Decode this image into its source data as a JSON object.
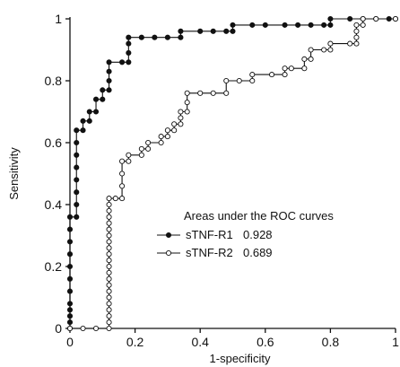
{
  "chart_data": {
    "type": "line",
    "xlabel": "1-specificity",
    "ylabel": "Sensitivity",
    "xlim": [
      0,
      1
    ],
    "ylim": [
      0,
      1
    ],
    "x_ticks": [
      "0",
      "0.2",
      "0.4",
      "0.6",
      "0.8",
      "1"
    ],
    "y_ticks": [
      "0",
      "0.2",
      "0.4",
      "0.6",
      "0.8",
      "1"
    ],
    "grid": false,
    "legend": {
      "title": "Areas under the ROC curves",
      "placement": "lower-right",
      "entries": [
        {
          "label": "sTNF-R1",
          "value": "0.928"
        },
        {
          "label": "sTNF-R2",
          "value": "0.689"
        }
      ]
    },
    "series": [
      {
        "name": "sTNF-R1",
        "marker": "filled-circle",
        "color": "#111111",
        "points": [
          [
            0.0,
            0.0
          ],
          [
            0.0,
            0.02
          ],
          [
            0.0,
            0.04
          ],
          [
            0.0,
            0.06
          ],
          [
            0.0,
            0.08
          ],
          [
            0.0,
            0.12
          ],
          [
            0.0,
            0.16
          ],
          [
            0.0,
            0.2
          ],
          [
            0.0,
            0.24
          ],
          [
            0.0,
            0.28
          ],
          [
            0.0,
            0.32
          ],
          [
            0.0,
            0.36
          ],
          [
            0.02,
            0.36
          ],
          [
            0.02,
            0.4
          ],
          [
            0.02,
            0.44
          ],
          [
            0.02,
            0.48
          ],
          [
            0.02,
            0.52
          ],
          [
            0.02,
            0.56
          ],
          [
            0.02,
            0.6
          ],
          [
            0.02,
            0.64
          ],
          [
            0.04,
            0.64
          ],
          [
            0.04,
            0.67
          ],
          [
            0.06,
            0.67
          ],
          [
            0.06,
            0.7
          ],
          [
            0.08,
            0.7
          ],
          [
            0.08,
            0.74
          ],
          [
            0.1,
            0.74
          ],
          [
            0.1,
            0.77
          ],
          [
            0.12,
            0.77
          ],
          [
            0.12,
            0.8
          ],
          [
            0.12,
            0.83
          ],
          [
            0.12,
            0.86
          ],
          [
            0.16,
            0.86
          ],
          [
            0.18,
            0.86
          ],
          [
            0.18,
            0.89
          ],
          [
            0.18,
            0.92
          ],
          [
            0.18,
            0.94
          ],
          [
            0.22,
            0.94
          ],
          [
            0.26,
            0.94
          ],
          [
            0.3,
            0.94
          ],
          [
            0.34,
            0.94
          ],
          [
            0.34,
            0.96
          ],
          [
            0.4,
            0.96
          ],
          [
            0.44,
            0.96
          ],
          [
            0.48,
            0.96
          ],
          [
            0.5,
            0.96
          ],
          [
            0.5,
            0.98
          ],
          [
            0.56,
            0.98
          ],
          [
            0.6,
            0.98
          ],
          [
            0.66,
            0.98
          ],
          [
            0.7,
            0.98
          ],
          [
            0.74,
            0.98
          ],
          [
            0.78,
            0.98
          ],
          [
            0.8,
            0.98
          ],
          [
            0.8,
            1.0
          ],
          [
            0.86,
            1.0
          ],
          [
            0.9,
            1.0
          ],
          [
            0.94,
            1.0
          ],
          [
            0.98,
            1.0
          ],
          [
            1.0,
            1.0
          ]
        ]
      },
      {
        "name": "sTNF-R2",
        "marker": "open-circle",
        "color": "#111111",
        "points": [
          [
            0.0,
            0.0
          ],
          [
            0.04,
            0.0
          ],
          [
            0.08,
            0.0
          ],
          [
            0.12,
            0.0
          ],
          [
            0.12,
            0.02
          ],
          [
            0.12,
            0.04
          ],
          [
            0.12,
            0.06
          ],
          [
            0.12,
            0.08
          ],
          [
            0.12,
            0.1
          ],
          [
            0.12,
            0.12
          ],
          [
            0.12,
            0.14
          ],
          [
            0.12,
            0.16
          ],
          [
            0.12,
            0.18
          ],
          [
            0.12,
            0.2
          ],
          [
            0.12,
            0.22
          ],
          [
            0.12,
            0.24
          ],
          [
            0.12,
            0.26
          ],
          [
            0.12,
            0.28
          ],
          [
            0.12,
            0.3
          ],
          [
            0.12,
            0.32
          ],
          [
            0.12,
            0.34
          ],
          [
            0.12,
            0.36
          ],
          [
            0.12,
            0.38
          ],
          [
            0.12,
            0.4
          ],
          [
            0.12,
            0.42
          ],
          [
            0.14,
            0.42
          ],
          [
            0.16,
            0.42
          ],
          [
            0.16,
            0.46
          ],
          [
            0.16,
            0.5
          ],
          [
            0.16,
            0.54
          ],
          [
            0.18,
            0.54
          ],
          [
            0.18,
            0.56
          ],
          [
            0.22,
            0.56
          ],
          [
            0.22,
            0.58
          ],
          [
            0.24,
            0.58
          ],
          [
            0.24,
            0.6
          ],
          [
            0.28,
            0.6
          ],
          [
            0.28,
            0.62
          ],
          [
            0.3,
            0.62
          ],
          [
            0.3,
            0.64
          ],
          [
            0.32,
            0.64
          ],
          [
            0.32,
            0.66
          ],
          [
            0.34,
            0.66
          ],
          [
            0.34,
            0.68
          ],
          [
            0.34,
            0.7
          ],
          [
            0.36,
            0.7
          ],
          [
            0.36,
            0.73
          ],
          [
            0.36,
            0.76
          ],
          [
            0.4,
            0.76
          ],
          [
            0.44,
            0.76
          ],
          [
            0.48,
            0.76
          ],
          [
            0.48,
            0.8
          ],
          [
            0.52,
            0.8
          ],
          [
            0.56,
            0.8
          ],
          [
            0.56,
            0.82
          ],
          [
            0.62,
            0.82
          ],
          [
            0.66,
            0.82
          ],
          [
            0.66,
            0.84
          ],
          [
            0.68,
            0.84
          ],
          [
            0.72,
            0.84
          ],
          [
            0.72,
            0.87
          ],
          [
            0.74,
            0.87
          ],
          [
            0.74,
            0.9
          ],
          [
            0.78,
            0.9
          ],
          [
            0.8,
            0.9
          ],
          [
            0.8,
            0.92
          ],
          [
            0.86,
            0.92
          ],
          [
            0.88,
            0.92
          ],
          [
            0.88,
            0.94
          ],
          [
            0.88,
            0.96
          ],
          [
            0.88,
            0.98
          ],
          [
            0.9,
            0.98
          ],
          [
            0.9,
            1.0
          ],
          [
            0.94,
            1.0
          ],
          [
            1.0,
            1.0
          ]
        ]
      }
    ]
  }
}
